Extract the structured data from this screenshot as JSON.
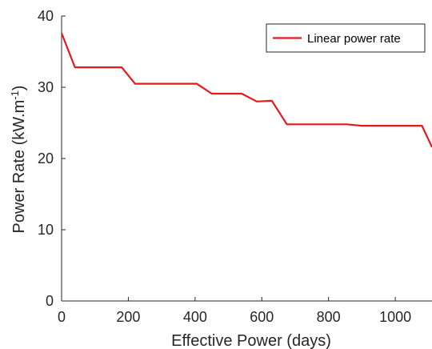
{
  "chart_data": {
    "type": "line",
    "xlabel": "Effective Power (days)",
    "ylabel_main": "Power Rate (kW.m",
    "ylabel_sup": "-1",
    "ylabel_close": ")",
    "xlim": [
      0,
      1110
    ],
    "ylim": [
      0,
      40
    ],
    "xticks": [
      0,
      200,
      400,
      600,
      800,
      1000
    ],
    "yticks": [
      0,
      10,
      20,
      30,
      40
    ],
    "grid": false,
    "legend_position": "top-right",
    "series": [
      {
        "name": "Linear power rate",
        "color": "#e31a1c",
        "x": [
          0,
          40,
          180,
          220,
          405,
          450,
          540,
          585,
          630,
          675,
          855,
          900,
          1080,
          1110
        ],
        "y": [
          37.6,
          32.8,
          32.8,
          30.5,
          30.5,
          29.1,
          29.1,
          28.0,
          28.1,
          24.8,
          24.8,
          24.6,
          24.6,
          21.6
        ]
      }
    ]
  }
}
